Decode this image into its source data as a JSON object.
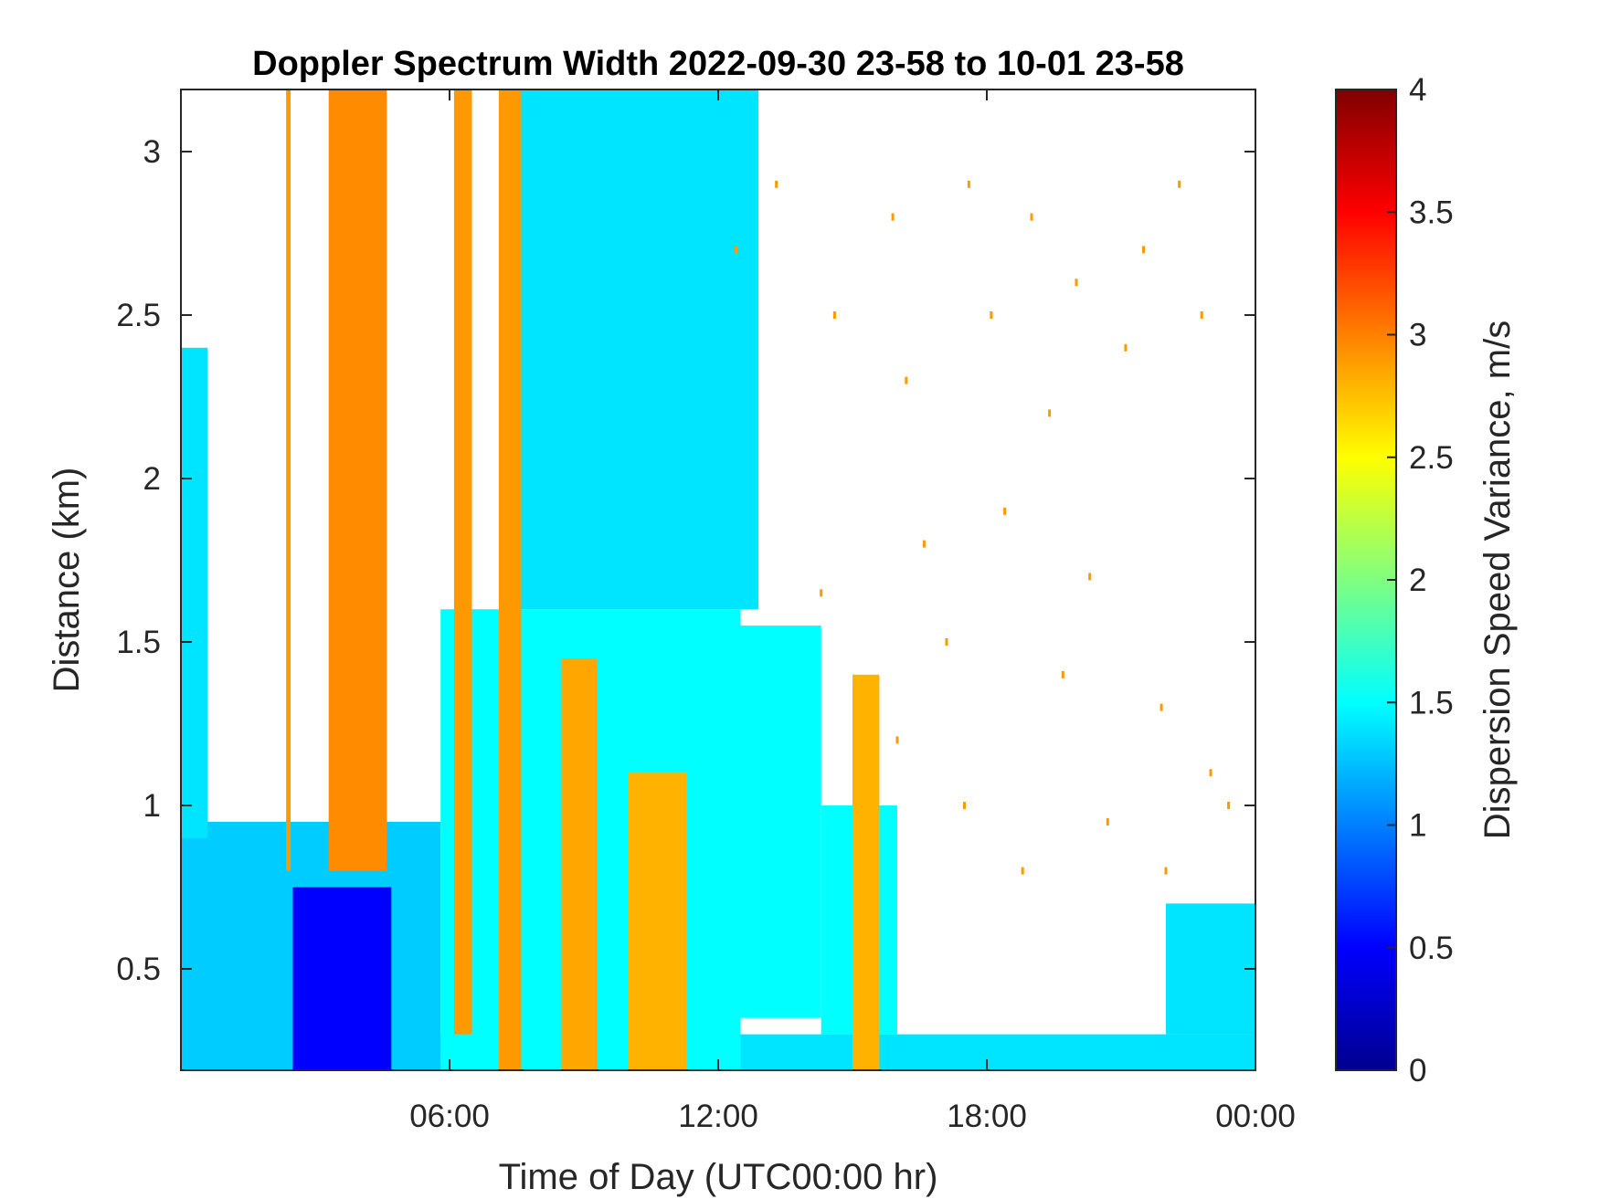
{
  "chart_data": {
    "type": "heatmap",
    "title": "Doppler Spectrum Width 2022-09-30 23-58 to 10-01 23-58",
    "xlabel": "Time of Day (UTC00:00 hr)",
    "ylabel": "Distance (km)",
    "colorbar_label": "Dispersion Speed Variance, m/s",
    "colormap": "jet",
    "xlim": [
      0,
      24
    ],
    "ylim": [
      0.19,
      3.19
    ],
    "clim": [
      0,
      4
    ],
    "x_ticks": [
      {
        "value": 6,
        "label": "06:00"
      },
      {
        "value": 12,
        "label": "12:00"
      },
      {
        "value": 18,
        "label": "18:00"
      },
      {
        "value": 24,
        "label": "00:00"
      }
    ],
    "y_ticks": [
      {
        "value": 0.5,
        "label": "0.5"
      },
      {
        "value": 1,
        "label": "1"
      },
      {
        "value": 1.5,
        "label": "1.5"
      },
      {
        "value": 2,
        "label": "2"
      },
      {
        "value": 2.5,
        "label": "2.5"
      },
      {
        "value": 3,
        "label": "3"
      }
    ],
    "colorbar_ticks": [
      {
        "value": 0,
        "label": "0"
      },
      {
        "value": 0.5,
        "label": "0.5"
      },
      {
        "value": 1,
        "label": "1"
      },
      {
        "value": 1.5,
        "label": "1.5"
      },
      {
        "value": 2,
        "label": "2"
      },
      {
        "value": 2.5,
        "label": "2.5"
      },
      {
        "value": 3,
        "label": "3"
      },
      {
        "value": 3.5,
        "label": "3.5"
      },
      {
        "value": 4,
        "label": "4"
      }
    ],
    "regions": [
      {
        "name": "boundary-layer",
        "x0": 0,
        "x1": 24,
        "y0": 0.19,
        "y1": 0.3,
        "value": 1.4
      },
      {
        "name": "low-cloud-early",
        "x0": 0,
        "x1": 5.8,
        "y0": 0.19,
        "y1": 0.95,
        "value": 1.3
      },
      {
        "name": "dense-low-early",
        "x0": 2.5,
        "x1": 4.7,
        "y0": 0.19,
        "y1": 0.75,
        "value": 0.5
      },
      {
        "name": "early-upper-edge",
        "x0": 0,
        "x1": 0.6,
        "y0": 0.9,
        "y1": 2.4,
        "value": 1.4
      },
      {
        "name": "mid-morning-band",
        "x0": 5.8,
        "x1": 12.5,
        "y0": 0.19,
        "y1": 1.6,
        "value": 1.5
      },
      {
        "name": "ascending-layer",
        "x0": 7.5,
        "x1": 12.9,
        "y0": 1.6,
        "y1": 3.19,
        "value": 1.4
      },
      {
        "name": "noon-layer",
        "x0": 12.0,
        "x1": 14.3,
        "y0": 0.35,
        "y1": 1.55,
        "value": 1.5
      },
      {
        "name": "afternoon-layer",
        "x0": 14.3,
        "x1": 16.0,
        "y0": 0.3,
        "y1": 1.0,
        "value": 1.5
      },
      {
        "name": "evening-rise",
        "x0": 22.0,
        "x1": 24.0,
        "y0": 0.3,
        "y1": 0.7,
        "value": 1.4
      },
      {
        "name": "band-early-1",
        "x0": 2.35,
        "x1": 2.45,
        "y0": 0.8,
        "y1": 3.19,
        "value": 2.9
      },
      {
        "name": "band-early-2",
        "x0": 3.3,
        "x1": 4.6,
        "y0": 0.8,
        "y1": 3.19,
        "value": 2.95
      },
      {
        "name": "band-morning-1",
        "x0": 6.1,
        "x1": 6.5,
        "y0": 0.3,
        "y1": 3.19,
        "value": 2.9
      },
      {
        "name": "band-morning-2",
        "x0": 7.1,
        "x1": 7.6,
        "y0": 0.19,
        "y1": 3.19,
        "value": 2.9
      },
      {
        "name": "band-late-morning",
        "x0": 8.5,
        "x1": 9.3,
        "y0": 0.19,
        "y1": 1.45,
        "value": 2.85
      },
      {
        "name": "band-midday",
        "x0": 10.0,
        "x1": 11.3,
        "y0": 0.19,
        "y1": 1.1,
        "value": 2.8
      },
      {
        "name": "band-afternoon",
        "x0": 15.0,
        "x1": 15.6,
        "y0": 0.19,
        "y1": 1.4,
        "value": 2.8
      }
    ],
    "isolated_orange_points": [
      [
        12.4,
        2.7
      ],
      [
        13.3,
        2.9
      ],
      [
        14.6,
        2.5
      ],
      [
        15.9,
        2.8
      ],
      [
        16.2,
        2.3
      ],
      [
        17.6,
        2.9
      ],
      [
        18.1,
        2.5
      ],
      [
        19.0,
        2.8
      ],
      [
        19.4,
        2.2
      ],
      [
        20.0,
        2.6
      ],
      [
        21.1,
        2.4
      ],
      [
        21.5,
        2.7
      ],
      [
        22.3,
        2.9
      ],
      [
        22.8,
        2.5
      ],
      [
        16.6,
        1.8
      ],
      [
        17.1,
        1.5
      ],
      [
        18.4,
        1.9
      ],
      [
        19.7,
        1.4
      ],
      [
        20.3,
        1.7
      ],
      [
        21.9,
        1.3
      ],
      [
        23.0,
        1.1
      ],
      [
        14.3,
        1.65
      ],
      [
        16.0,
        1.2
      ],
      [
        17.5,
        1.0
      ],
      [
        18.8,
        0.8
      ],
      [
        20.7,
        0.95
      ],
      [
        22.0,
        0.8
      ],
      [
        23.4,
        1.0
      ]
    ]
  }
}
